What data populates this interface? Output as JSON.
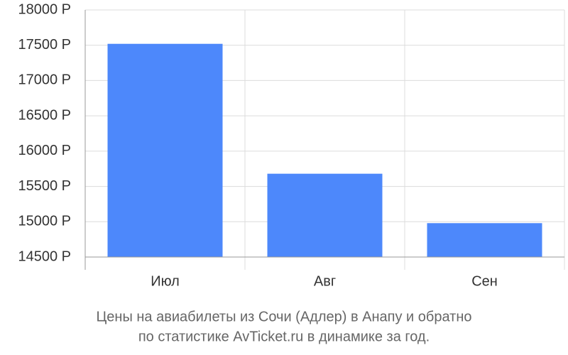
{
  "chart_data": {
    "type": "bar",
    "caption": [
      "Цены на авиабилеты из Сочи (Адлер) в Анапу и обратно",
      "по статистике AvTicket.ru в динамике за год."
    ],
    "categories": [
      "Июл",
      "Авг",
      "Сен"
    ],
    "values": [
      17520,
      15680,
      14980
    ],
    "color": "#4d88fb",
    "ylim": [
      14500,
      18000
    ],
    "yticks": [
      {
        "value": 14500,
        "label": "14500 Р"
      },
      {
        "value": 15000,
        "label": "15000 Р"
      },
      {
        "value": 15500,
        "label": "15500 Р"
      },
      {
        "value": 16000,
        "label": "16000 Р"
      },
      {
        "value": 16500,
        "label": "16500 Р"
      },
      {
        "value": 17000,
        "label": "17000 Р"
      },
      {
        "value": 17500,
        "label": "17500 Р"
      },
      {
        "value": 18000,
        "label": "18000 Р"
      }
    ],
    "grid": true
  }
}
